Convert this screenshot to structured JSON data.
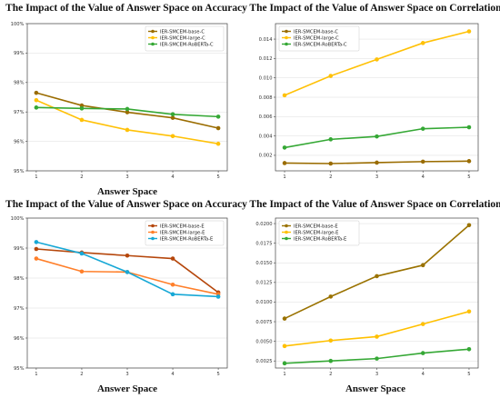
{
  "chart_data": [
    {
      "type": "line",
      "title": "The Impact of the Value of Answer Space on Accuracy",
      "xlabel": "Answer Space",
      "ylabel": "",
      "x": [
        1,
        2,
        3,
        4,
        5
      ],
      "ylim": [
        95,
        100
      ],
      "yticks": [
        95,
        96,
        97,
        98,
        99,
        100
      ],
      "ytick_labels": [
        "95%",
        "96%",
        "97%",
        "98%",
        "99%",
        "100%"
      ],
      "grid": true,
      "legend_position": "top-right",
      "series": [
        {
          "name": "IER-SMCEM-base-C",
          "color": "#9a6c00",
          "values": [
            97.65,
            97.22,
            96.99,
            96.8,
            96.45
          ]
        },
        {
          "name": "IER-SMCEM-large-C",
          "color": "#ffc107",
          "values": [
            97.4,
            96.73,
            96.39,
            96.18,
            95.92
          ]
        },
        {
          "name": "IER-SMCEM-RoBERTa-C",
          "color": "#35a835",
          "values": [
            97.15,
            97.12,
            97.1,
            96.92,
            96.84
          ]
        }
      ]
    },
    {
      "type": "line",
      "title": "The Impact of the Value of Answer Space on Correlation",
      "xlabel": "",
      "ylabel": "",
      "x": [
        1,
        2,
        3,
        4,
        5
      ],
      "ylim": [
        0.0004,
        0.0156
      ],
      "yticks": [
        0.002,
        0.004,
        0.006,
        0.008,
        0.01,
        0.012,
        0.014
      ],
      "ytick_labels": [
        "0.002",
        "0.004",
        "0.006",
        "0.008",
        "0.010",
        "0.012",
        "0.014"
      ],
      "grid": true,
      "legend_position": "top-left",
      "series": [
        {
          "name": "IER-SMCEM-base-C",
          "color": "#9a6c00",
          "values": [
            0.0012,
            0.00115,
            0.00125,
            0.00135,
            0.0014
          ]
        },
        {
          "name": "IER-SMCEM-large-C",
          "color": "#ffc107",
          "values": [
            0.0082,
            0.0102,
            0.0119,
            0.0136,
            0.0148
          ]
        },
        {
          "name": "IER-SMCEM-RoBERTa-C",
          "color": "#35a835",
          "values": [
            0.0028,
            0.00365,
            0.00395,
            0.00475,
            0.0049
          ]
        }
      ]
    },
    {
      "type": "line",
      "title": "The Impact of the Value of Answer Space on Accuracy",
      "xlabel": "Answer Space",
      "ylabel": "",
      "x": [
        1,
        2,
        3,
        4,
        5
      ],
      "ylim": [
        95,
        100
      ],
      "yticks": [
        95,
        96,
        97,
        98,
        99,
        100
      ],
      "ytick_labels": [
        "95%",
        "96%",
        "97%",
        "98%",
        "99%",
        "100%"
      ],
      "grid": true,
      "legend_position": "top-right",
      "series": [
        {
          "name": "IER-SMCEM-base-E",
          "color": "#b5460b",
          "values": [
            98.97,
            98.85,
            98.75,
            98.65,
            97.52
          ]
        },
        {
          "name": "IER-SMCEM-large-E",
          "color": "#ff7f2a",
          "values": [
            98.65,
            98.22,
            98.2,
            97.78,
            97.46
          ]
        },
        {
          "name": "IER-SMCEM-RoBERTa-E",
          "color": "#17a8d6",
          "values": [
            99.2,
            98.82,
            98.2,
            97.46,
            97.38
          ]
        }
      ]
    },
    {
      "type": "line",
      "title": "The Impact of the Value of Answer Space on Correlation",
      "xlabel": "Answer Space",
      "ylabel": "",
      "x": [
        1,
        2,
        3,
        4,
        5
      ],
      "ylim": [
        0.0016,
        0.0207
      ],
      "yticks": [
        0.0025,
        0.005,
        0.0075,
        0.01,
        0.0125,
        0.015,
        0.0175,
        0.02
      ],
      "ytick_labels": [
        "0.0025",
        "0.0050",
        "0.0075",
        "0.0100",
        "0.0125",
        "0.0150",
        "0.0175",
        "0.0200"
      ],
      "grid": true,
      "legend_position": "top-left",
      "series": [
        {
          "name": "IER-SMCEM-base-E",
          "color": "#9a7200",
          "values": [
            0.0079,
            0.0107,
            0.0133,
            0.0147,
            0.0198
          ]
        },
        {
          "name": "IER-SMCEM-large-E",
          "color": "#ffc000",
          "values": [
            0.0044,
            0.0051,
            0.0056,
            0.0072,
            0.0088
          ]
        },
        {
          "name": "IER-SMCEM-RoBERTa-E",
          "color": "#35a835",
          "values": [
            0.0022,
            0.0025,
            0.0028,
            0.0035,
            0.004
          ]
        }
      ]
    }
  ]
}
